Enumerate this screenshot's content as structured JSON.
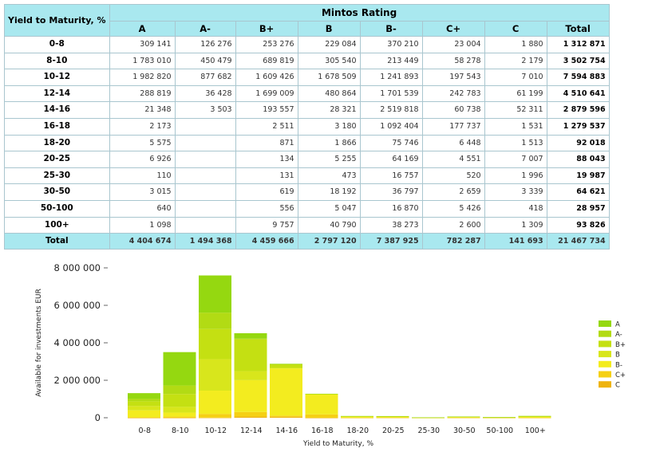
{
  "table": {
    "yield_header": "Yield to Maturity, %",
    "rating_header": "Mintos Rating",
    "columns": [
      "A",
      "A-",
      "B+",
      "B",
      "B-",
      "C+",
      "C",
      "Total"
    ],
    "rows": [
      {
        "label": "0-8",
        "cells": [
          "309 141",
          "126 276",
          "253 276",
          "229 084",
          "370 210",
          "23 004",
          "1 880",
          "1 312 871"
        ]
      },
      {
        "label": "8-10",
        "cells": [
          "1 783 010",
          "450 479",
          "689 819",
          "305 540",
          "213 449",
          "58 278",
          "2 179",
          "3 502 754"
        ]
      },
      {
        "label": "10-12",
        "cells": [
          "1 982 820",
          "877 682",
          "1 609 426",
          "1 678 509",
          "1 241 893",
          "197 543",
          "7 010",
          "7 594 883"
        ]
      },
      {
        "label": "12-14",
        "cells": [
          "288 819",
          "36 428",
          "1 699 009",
          "480 864",
          "1 701 539",
          "242 783",
          "61 199",
          "4 510 641"
        ]
      },
      {
        "label": "14-16",
        "cells": [
          "21 348",
          "3 503",
          "193 557",
          "28 321",
          "2 519 818",
          "60 738",
          "52 311",
          "2 879 596"
        ]
      },
      {
        "label": "16-18",
        "cells": [
          "2 173",
          "",
          "2 511",
          "3 180",
          "1 092 404",
          "177 737",
          "1 531",
          "1 279 537"
        ]
      },
      {
        "label": "18-20",
        "cells": [
          "5 575",
          "",
          "871",
          "1 866",
          "75 746",
          "6 448",
          "1 513",
          "92 018"
        ]
      },
      {
        "label": "20-25",
        "cells": [
          "6 926",
          "",
          "134",
          "5 255",
          "64 169",
          "4 551",
          "7 007",
          "88 043"
        ]
      },
      {
        "label": "25-30",
        "cells": [
          "110",
          "",
          "131",
          "473",
          "16 757",
          "520",
          "1 996",
          "19 987"
        ]
      },
      {
        "label": "30-50",
        "cells": [
          "3 015",
          "",
          "619",
          "18 192",
          "36 797",
          "2 659",
          "3 339",
          "64 621"
        ]
      },
      {
        "label": "50-100",
        "cells": [
          "640",
          "",
          "556",
          "5 047",
          "16 870",
          "5 426",
          "418",
          "28 957"
        ]
      },
      {
        "label": "100+",
        "cells": [
          "1 098",
          "",
          "9 757",
          "40 790",
          "38 273",
          "2 600",
          "1 309",
          "93 826"
        ]
      }
    ],
    "total_row": {
      "label": "Total",
      "cells": [
        "4 404 674",
        "1 494 368",
        "4 459 666",
        "2 797 120",
        "7 387 925",
        "782 287",
        "141 693",
        "21 467 734"
      ]
    }
  },
  "chart_data": {
    "type": "bar",
    "stacked": true,
    "categories": [
      "0-8",
      "8-10",
      "10-12",
      "12-14",
      "14-16",
      "16-18",
      "18-20",
      "20-25",
      "25-30",
      "30-50",
      "50-100",
      "100+"
    ],
    "series": [
      {
        "name": "A",
        "color": "#95d810",
        "values": [
          309141,
          1783010,
          1982820,
          288819,
          21348,
          2173,
          5575,
          6926,
          110,
          3015,
          640,
          1098
        ]
      },
      {
        "name": "A-",
        "color": "#b2db14",
        "values": [
          126276,
          450479,
          877682,
          36428,
          3503,
          0,
          0,
          0,
          0,
          0,
          0,
          0
        ]
      },
      {
        "name": "B+",
        "color": "#c4e012",
        "values": [
          253276,
          689819,
          1609426,
          1699009,
          193557,
          2511,
          871,
          134,
          131,
          619,
          556,
          9757
        ]
      },
      {
        "name": "B",
        "color": "#d8e61c",
        "values": [
          229084,
          305540,
          1678509,
          480864,
          28321,
          3180,
          1866,
          5255,
          473,
          18192,
          5047,
          40790
        ]
      },
      {
        "name": "B-",
        "color": "#f3ec1f",
        "values": [
          370210,
          213449,
          1241893,
          1701539,
          2519818,
          1092404,
          75746,
          64169,
          16757,
          36797,
          16870,
          38273
        ]
      },
      {
        "name": "C+",
        "color": "#f5d013",
        "values": [
          23004,
          58278,
          197543,
          242783,
          60738,
          177737,
          6448,
          4551,
          520,
          2659,
          5426,
          2600
        ]
      },
      {
        "name": "C",
        "color": "#eeb410",
        "values": [
          1880,
          2179,
          7010,
          61199,
          52311,
          1531,
          1513,
          7007,
          1996,
          3339,
          418,
          1309
        ]
      }
    ],
    "ylim": [
      0,
      8000000
    ],
    "yticks": [
      0,
      2000000,
      4000000,
      6000000,
      8000000
    ],
    "ytick_labels": [
      "0",
      "2 000 000",
      "4 000 000",
      "6 000 000",
      "8 000 000"
    ],
    "xlabel": "Yield to Maturity, %",
    "ylabel": "Available for investments EUR",
    "legend": "right",
    "grid": false
  }
}
